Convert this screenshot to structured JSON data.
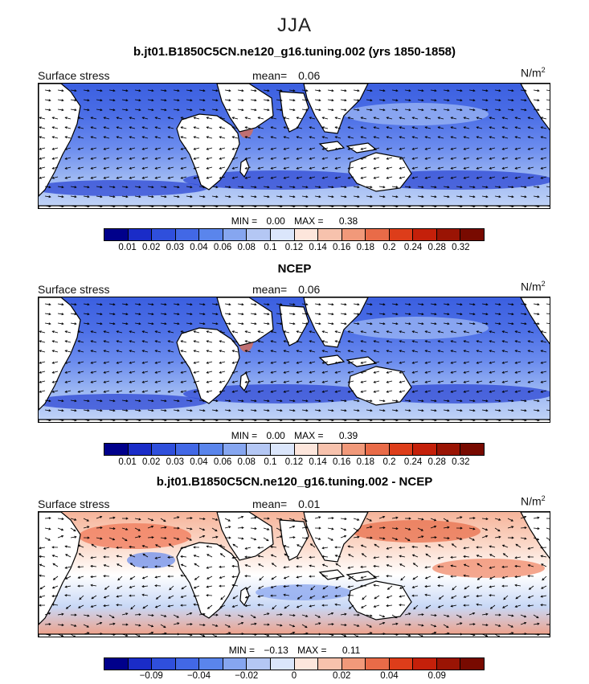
{
  "page": {
    "title": "JJA"
  },
  "chart_data": [
    {
      "type": "heatmap",
      "title": "b.jt01.B1850C5CN.ne120_g16.tuning.002 (yrs 1850-1858)",
      "field_label": "Surface stress",
      "mean_label": "mean=",
      "mean_value": "0.06",
      "units": "N/m",
      "units_exp": "2",
      "min_label": "MIN =",
      "min_value": "0.00",
      "max_label": "MAX =",
      "max_value": "0.38",
      "colorbar": {
        "colors": [
          "#00008b",
          "#1a2cc8",
          "#2f4fdc",
          "#4268e6",
          "#5a85ec",
          "#86a6f0",
          "#b4c7f4",
          "#dbe6fb",
          "#fde6dc",
          "#f7c2ad",
          "#f1997a",
          "#e96b48",
          "#dd3d1a",
          "#c4200a",
          "#9a1404",
          "#780a00"
        ],
        "ticks": [
          "0.01",
          "0.02",
          "0.03",
          "0.04",
          "0.06",
          "0.08",
          "0.1",
          "0.12",
          "0.14",
          "0.16",
          "0.18",
          "0.2",
          "0.24",
          "0.28",
          "0.32"
        ]
      }
    },
    {
      "type": "heatmap",
      "title": "NCEP",
      "field_label": "Surface stress",
      "mean_label": "mean=",
      "mean_value": "0.06",
      "units": "N/m",
      "units_exp": "2",
      "min_label": "MIN =",
      "min_value": "0.00",
      "max_label": "MAX =",
      "max_value": "0.39",
      "colorbar": {
        "colors": [
          "#00008b",
          "#1a2cc8",
          "#2f4fdc",
          "#4268e6",
          "#5a85ec",
          "#86a6f0",
          "#b4c7f4",
          "#dbe6fb",
          "#fde6dc",
          "#f7c2ad",
          "#f1997a",
          "#e96b48",
          "#dd3d1a",
          "#c4200a",
          "#9a1404",
          "#780a00"
        ],
        "ticks": [
          "0.01",
          "0.02",
          "0.03",
          "0.04",
          "0.06",
          "0.08",
          "0.1",
          "0.12",
          "0.14",
          "0.16",
          "0.18",
          "0.2",
          "0.24",
          "0.28",
          "0.32"
        ]
      }
    },
    {
      "type": "heatmap",
      "title": "b.jt01.B1850C5CN.ne120_g16.tuning.002 - NCEP",
      "field_label": "Surface stress",
      "mean_label": "mean=",
      "mean_value": "0.01",
      "units": "N/m",
      "units_exp": "2",
      "min_label": "MIN =",
      "min_value": "−0.13",
      "max_label": "MAX =",
      "max_value": "0.11",
      "colorbar": {
        "colors": [
          "#00008b",
          "#1a2cc8",
          "#2f4fdc",
          "#4268e6",
          "#5a85ec",
          "#86a6f0",
          "#b4c7f4",
          "#dbe6fb",
          "#fde6dc",
          "#f7c2ad",
          "#f1997a",
          "#e96b48",
          "#dd3d1a",
          "#c4200a",
          "#9a1404",
          "#780a00"
        ],
        "ticks": [
          "−0.09",
          "−0.04",
          "−0.02",
          "0",
          "0.02",
          "0.04",
          "0.09"
        ]
      }
    }
  ]
}
